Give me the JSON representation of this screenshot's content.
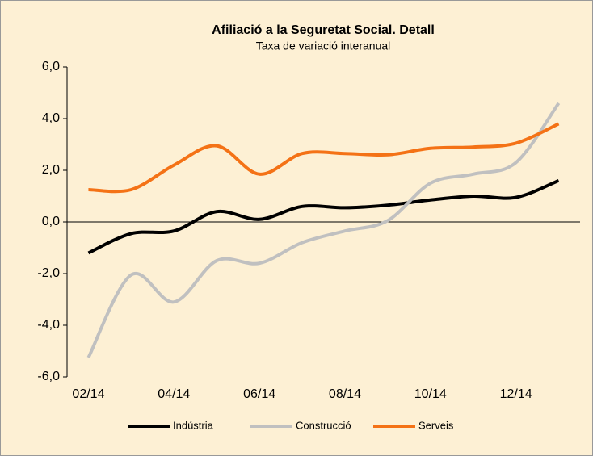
{
  "chart_data": {
    "type": "line",
    "title": "Afiliació a la Seguretat Social. Detall",
    "subtitle": "Taxa de variació interanual",
    "categories": [
      "02/14",
      null,
      "04/14",
      null,
      "06/14",
      null,
      "08/14",
      null,
      "10/14",
      null,
      "12/14",
      null
    ],
    "series": [
      {
        "name": "Indústria",
        "color": "#000000",
        "values": [
          -1.2,
          -0.45,
          -0.35,
          0.4,
          0.1,
          0.6,
          0.55,
          0.65,
          0.85,
          1.0,
          0.95,
          1.6
        ]
      },
      {
        "name": "Construcció",
        "color": "#c0c0c0",
        "values": [
          -5.25,
          -2.05,
          -3.1,
          -1.5,
          -1.6,
          -0.8,
          -0.35,
          0.05,
          1.5,
          1.85,
          2.3,
          4.6
        ]
      },
      {
        "name": "Serveis",
        "color": "#f47216",
        "values": [
          1.25,
          1.25,
          2.2,
          2.95,
          1.85,
          2.65,
          2.65,
          2.6,
          2.85,
          2.9,
          3.05,
          3.8
        ]
      }
    ],
    "ylim": [
      -6,
      6
    ],
    "yticks": [
      {
        "value": -6,
        "label": "-6,0"
      },
      {
        "value": -4,
        "label": "-4,0"
      },
      {
        "value": -2,
        "label": "-2,0"
      },
      {
        "value": 0,
        "label": "0,0"
      },
      {
        "value": 2,
        "label": "2,0"
      },
      {
        "value": 4,
        "label": "4,0"
      },
      {
        "value": 6,
        "label": "6,0"
      }
    ],
    "legend": "bottom"
  }
}
